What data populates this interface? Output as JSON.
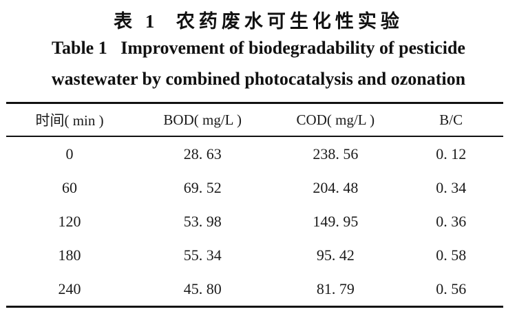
{
  "titles": {
    "chinese": "表 1  农药废水可生化性实验",
    "english_line1": "Table 1   Improvement of biodegradability of pesticide",
    "english_line2": "wastewater by combined photocatalysis and ozonation"
  },
  "table": {
    "headers": [
      "时间( min )",
      "BOD( mg/L )",
      "COD( mg/L )",
      "B/C"
    ],
    "rows": [
      [
        "0",
        "28. 63",
        "238. 56",
        "0. 12"
      ],
      [
        "60",
        "69. 52",
        "204. 48",
        "0. 34"
      ],
      [
        "120",
        "53. 98",
        "149. 95",
        "0. 36"
      ],
      [
        "180",
        "55. 34",
        "95. 42",
        "0. 58"
      ],
      [
        "240",
        "45. 80",
        "81. 79",
        "0. 56"
      ]
    ]
  },
  "colors": {
    "text": "#1a1a1a",
    "rule": "#111111",
    "background": "#ffffff"
  }
}
